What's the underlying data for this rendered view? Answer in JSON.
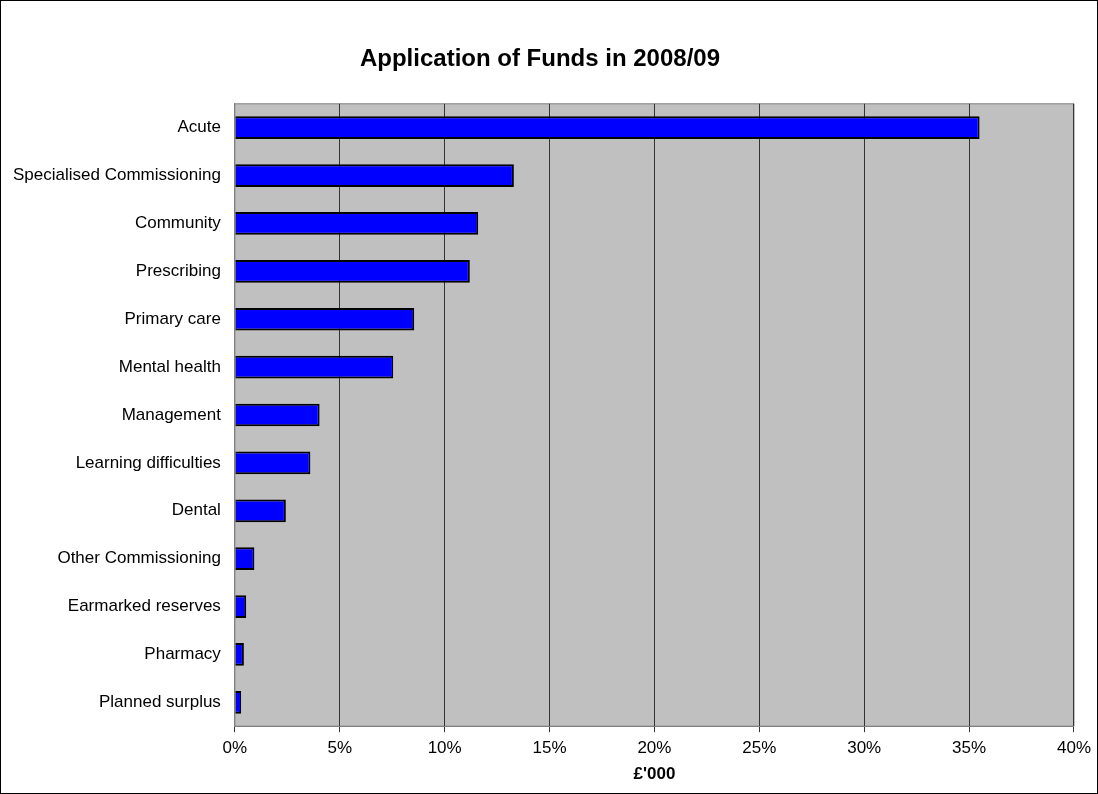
{
  "chart_data": {
    "type": "bar",
    "orientation": "horizontal",
    "title": "Application of Funds in 2008/09",
    "xlabel": "£'000",
    "categories": [
      "Acute",
      "Specialised Commissioning",
      "Community",
      "Prescribing",
      "Primary care",
      "Mental health",
      "Management",
      "Learning difficulties",
      "Dental",
      "Other Commissioning",
      "Earmarked reserves",
      "Pharmacy",
      "Planned surplus"
    ],
    "values": [
      35.5,
      13.3,
      11.6,
      11.2,
      8.55,
      7.55,
      4.04,
      3.6,
      2.43,
      0.93,
      0.54,
      0.43,
      0.3
    ],
    "color": "#0000ff",
    "xlim": [
      0,
      40
    ],
    "xticks": [
      {
        "value": 0,
        "label": "0%"
      },
      {
        "value": 5,
        "label": "5%"
      },
      {
        "value": 10,
        "label": "10%"
      },
      {
        "value": 15,
        "label": "15%"
      },
      {
        "value": 20,
        "label": "20%"
      },
      {
        "value": 25,
        "label": "25%"
      },
      {
        "value": 30,
        "label": "30%"
      },
      {
        "value": 35,
        "label": "35%"
      },
      {
        "value": 40,
        "label": "40%"
      }
    ],
    "grid": "x",
    "legend": false
  }
}
